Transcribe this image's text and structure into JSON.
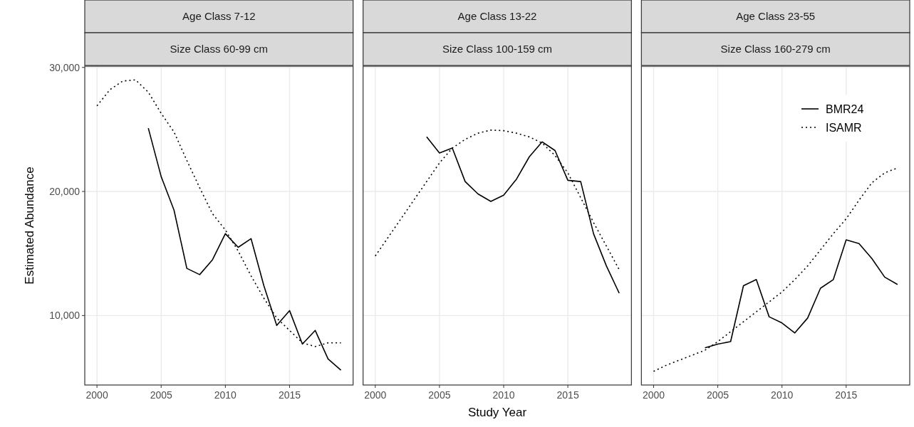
{
  "chart_data": [
    {
      "type": "line",
      "title": "Age Class 7-12",
      "subtitle": "Size Class 60-99 cm",
      "ylabel": "Estimated Abundance",
      "xlim": [
        1999.05,
        2019.95
      ],
      "ylim": [
        4400,
        30100
      ],
      "xticks": [
        2000,
        2005,
        2010,
        2015
      ],
      "yticks": [
        {
          "value": 10000,
          "label": "10,000"
        },
        {
          "value": 20000,
          "label": "20,000"
        },
        {
          "value": 30000,
          "label": "30,000"
        }
      ],
      "grid": true,
      "series": [
        {
          "color": "#000000",
          "line_style": "solid",
          "x": [
            2004,
            2005,
            2006,
            2007,
            2008,
            2009,
            2010,
            2011,
            2012,
            2013,
            2014,
            2015,
            2016,
            2017,
            2018,
            2019
          ],
          "values": [
            25100,
            21200,
            18500,
            13800,
            13300,
            14500,
            16600,
            15500,
            16200,
            12400,
            9200,
            10400,
            7700,
            8800,
            6500,
            5600
          ]
        },
        {
          "color": "#000000",
          "line_style": "dotted",
          "x": [
            2000,
            2001,
            2002,
            2003,
            2004,
            2005,
            2006,
            2007,
            2008,
            2009,
            2010,
            2011,
            2012,
            2013,
            2014,
            2015,
            2016,
            2017,
            2018,
            2019
          ],
          "values": [
            26900,
            28200,
            28900,
            29000,
            28000,
            26300,
            24800,
            22500,
            20300,
            18200,
            16900,
            15200,
            13200,
            11400,
            9800,
            8800,
            7800,
            7500,
            7800,
            7800
          ]
        }
      ]
    },
    {
      "type": "line",
      "title": "Age Class 13-22",
      "subtitle": "Size Class 100-159 cm",
      "xlabel": "Study Year",
      "xlim": [
        1999.05,
        2019.95
      ],
      "ylim": [
        4400,
        30100
      ],
      "xticks": [
        2000,
        2005,
        2010,
        2015
      ],
      "yticks": [
        10000,
        20000,
        30000
      ],
      "tick_labels": "x",
      "grid": true,
      "series": [
        {
          "color": "#000000",
          "line_style": "solid",
          "x": [
            2004,
            2005,
            2006,
            2007,
            2008,
            2009,
            2010,
            2011,
            2012,
            2013,
            2014,
            2015,
            2016,
            2017,
            2018,
            2019
          ],
          "values": [
            24400,
            23100,
            23500,
            20800,
            19800,
            19200,
            19700,
            21000,
            22800,
            24000,
            23300,
            20900,
            20800,
            16600,
            14000,
            11800
          ]
        },
        {
          "color": "#000000",
          "line_style": "dotted",
          "x": [
            2000,
            2001,
            2002,
            2003,
            2004,
            2005,
            2006,
            2007,
            2008,
            2009,
            2010,
            2011,
            2012,
            2013,
            2014,
            2015,
            2016,
            2017,
            2018,
            2019
          ],
          "values": [
            14800,
            16300,
            17800,
            19300,
            20800,
            22300,
            23500,
            24200,
            24700,
            24950,
            24900,
            24700,
            24400,
            23900,
            22900,
            21500,
            19500,
            17500,
            15600,
            13700
          ]
        }
      ]
    },
    {
      "type": "line",
      "title": "Age Class 23-55",
      "subtitle": "Size Class 160-279 cm",
      "xlim": [
        1999.05,
        2019.95
      ],
      "ylim": [
        4400,
        30100
      ],
      "xticks": [
        2000,
        2005,
        2010,
        2015
      ],
      "yticks": [
        10000,
        20000,
        30000
      ],
      "tick_labels": "x",
      "grid": true,
      "legend": "top right",
      "series": [
        {
          "name": "BMR24",
          "color": "#000000",
          "line_style": "solid",
          "x": [
            2004,
            2005,
            2006,
            2007,
            2008,
            2009,
            2010,
            2011,
            2012,
            2013,
            2014,
            2015,
            2016,
            2017,
            2018,
            2019
          ],
          "values": [
            7400,
            7700,
            7900,
            12400,
            12900,
            9900,
            9400,
            8600,
            9800,
            12200,
            12900,
            16100,
            15800,
            14600,
            13100,
            12500
          ]
        },
        {
          "name": "ISAMR",
          "color": "#000000",
          "line_style": "dotted",
          "x": [
            2000,
            2001,
            2002,
            2003,
            2004,
            2005,
            2006,
            2007,
            2008,
            2009,
            2010,
            2011,
            2012,
            2013,
            2014,
            2015,
            2016,
            2017,
            2018,
            2019
          ],
          "values": [
            5500,
            6000,
            6400,
            6800,
            7200,
            7900,
            8700,
            9500,
            10300,
            11100,
            11900,
            12900,
            14000,
            15300,
            16600,
            17800,
            19300,
            20700,
            21500,
            21900
          ]
        }
      ]
    }
  ]
}
